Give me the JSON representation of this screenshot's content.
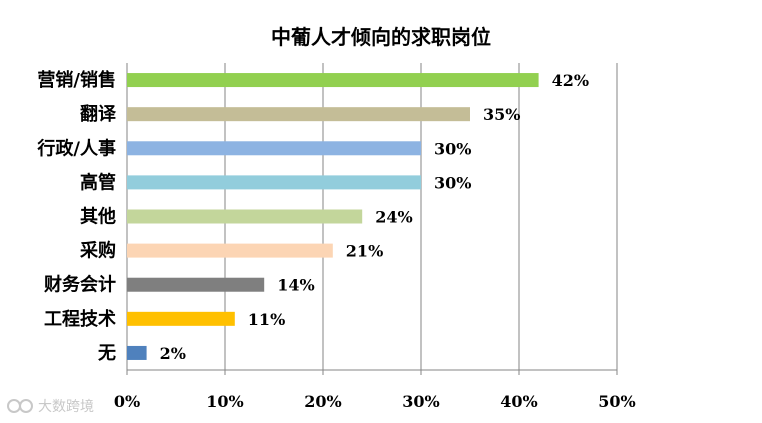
{
  "chart_data": {
    "type": "bar",
    "orientation": "horizontal",
    "title": "中葡人才倾向的求职岗位",
    "categories": [
      "营销/销售",
      "翻译",
      "行政/人事",
      "高管",
      "其他",
      "采购",
      "财务会计",
      "工程技术",
      "无"
    ],
    "values": [
      42,
      35,
      30,
      30,
      24,
      21,
      14,
      11,
      2
    ],
    "data_labels": [
      "42%",
      "35%",
      "30%",
      "30%",
      "24%",
      "21%",
      "14%",
      "11%",
      "2%"
    ],
    "colors": [
      "#92d050",
      "#c4bd97",
      "#8db3e2",
      "#92cddc",
      "#c3d69b",
      "#fcd5b4",
      "#7f7f7f",
      "#ffc000",
      "#4f81bd"
    ],
    "xlim": [
      0,
      50
    ],
    "xticks": [
      0,
      10,
      20,
      30,
      40,
      50
    ],
    "xtick_labels": [
      "0%",
      "10%",
      "20%",
      "30%",
      "40%",
      "50%"
    ],
    "grid": true,
    "gridline_color": "#868686",
    "legend": "none"
  },
  "watermark": {
    "icon": "brand-logo-icon",
    "text": "大数跨境"
  }
}
